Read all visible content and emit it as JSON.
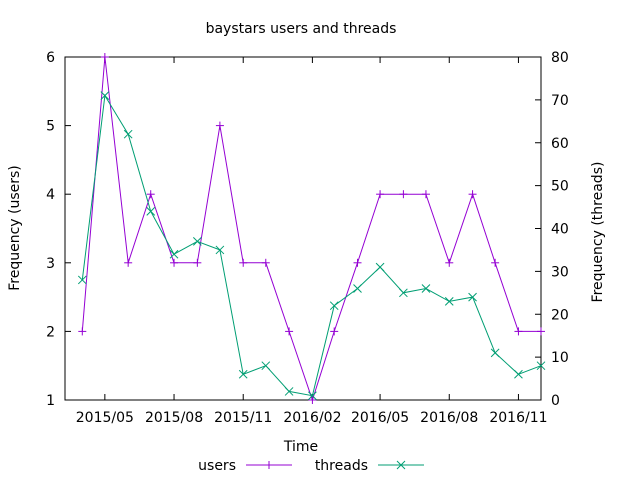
{
  "chart_data": {
    "type": "line",
    "title": "baystars users and threads",
    "xlabel": "Time",
    "ylabel_left": "Frequency (users)",
    "ylabel_right": "Frequency (threads)",
    "x": [
      "2015-04",
      "2015-05",
      "2015-06",
      "2015-07",
      "2015-08",
      "2015-09",
      "2015-10",
      "2015-11",
      "2015-12",
      "2016-01",
      "2016-02",
      "2016-03",
      "2016-04",
      "2016-05",
      "2016-06",
      "2016-07",
      "2016-08",
      "2016-09",
      "2016-10",
      "2016-11",
      "2016-12"
    ],
    "x_range": [
      "2015-03-09",
      "2016-12-01"
    ],
    "x_ticks": [
      {
        "date": "2015-05-01",
        "label": "2015/05"
      },
      {
        "date": "2015-08-01",
        "label": "2015/08"
      },
      {
        "date": "2015-11-01",
        "label": "2015/11"
      },
      {
        "date": "2016-02-01",
        "label": "2016/02"
      },
      {
        "date": "2016-05-01",
        "label": "2016/05"
      },
      {
        "date": "2016-08-01",
        "label": "2016/08"
      },
      {
        "date": "2016-11-01",
        "label": "2016/11"
      }
    ],
    "ylim_left": [
      1,
      6
    ],
    "yticks_left": [
      "1",
      "2",
      "3",
      "4",
      "5",
      "6"
    ],
    "ylim_right": [
      0,
      80
    ],
    "yticks_right": [
      "0",
      "10",
      "20",
      "30",
      "40",
      "50",
      "60",
      "70",
      "80"
    ],
    "grid": false,
    "legend_placement": "bottom",
    "series": [
      {
        "name": "users",
        "axis": "left",
        "color": "#9400d3",
        "marker": "plus",
        "values": [
          2,
          6,
          3,
          4,
          3,
          3,
          5,
          3,
          3,
          2,
          1,
          2,
          3,
          4,
          4,
          4,
          3,
          4,
          3,
          2,
          2
        ]
      },
      {
        "name": "threads",
        "axis": "right",
        "color": "#009e73",
        "marker": "cross",
        "values": [
          28,
          71,
          62,
          44,
          34,
          37,
          35,
          6,
          8,
          2,
          1,
          22,
          26,
          31,
          25,
          26,
          23,
          24,
          11,
          6,
          8
        ]
      }
    ]
  }
}
